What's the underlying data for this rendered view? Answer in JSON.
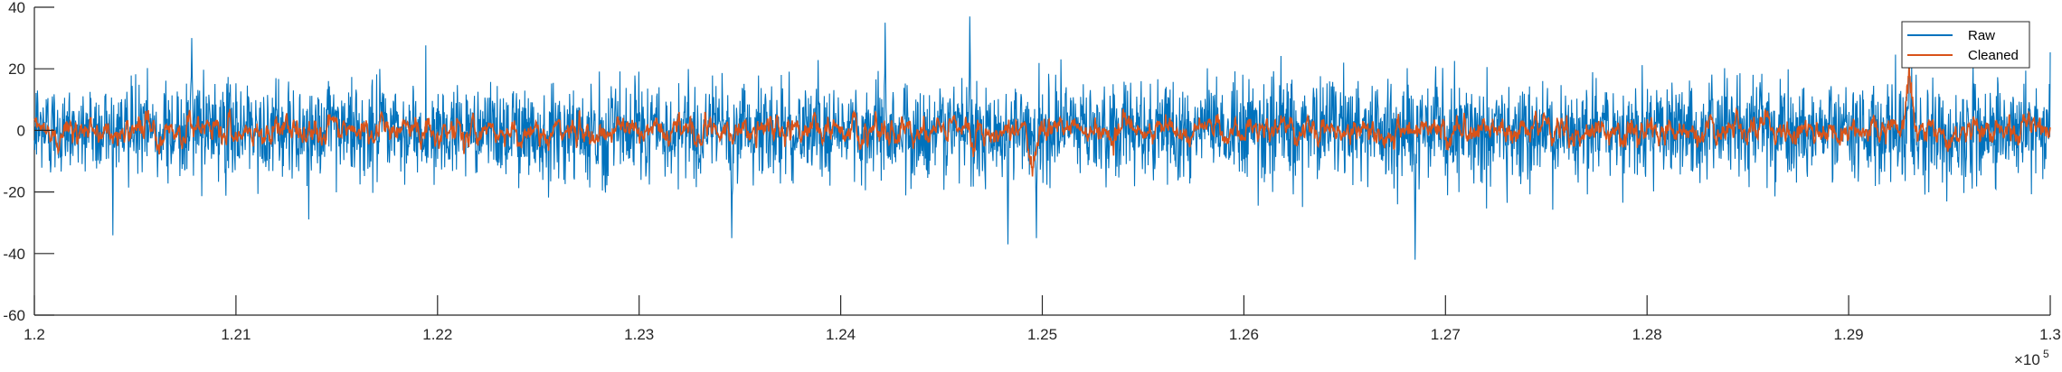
{
  "chart_data": {
    "type": "line",
    "title": "",
    "xlabel": "",
    "ylabel": "",
    "xlim": [
      1.2,
      1.3
    ],
    "ylim": [
      -60,
      40
    ],
    "x_exponent": "×10",
    "x_exponent_power": "5",
    "x_ticks": [
      1.2,
      1.21,
      1.22,
      1.23,
      1.24,
      1.25,
      1.26,
      1.27,
      1.28,
      1.29,
      1.3
    ],
    "x_tick_labels": [
      "1.2",
      "1.21",
      "1.22",
      "1.23",
      "1.24",
      "1.25",
      "1.26",
      "1.27",
      "1.28",
      "1.29",
      "1.3"
    ],
    "y_ticks": [
      -60,
      -40,
      -20,
      0,
      20,
      40
    ],
    "y_tick_labels": [
      "-60",
      "-40",
      "-20",
      "0",
      "20",
      "40"
    ],
    "grid": false,
    "legend": {
      "placement": "top-right",
      "entries": [
        "Raw",
        "Cleaned"
      ]
    },
    "series": [
      {
        "name": "Raw",
        "color": "#0072BD",
        "amplitude_approx": 10,
        "peaks": [
          {
            "x": 1.2078,
            "y": 30
          },
          {
            "x": 1.2464,
            "y": 37
          },
          {
            "x": 1.2422,
            "y": 35
          },
          {
            "x": 1.2346,
            "y": -35
          },
          {
            "x": 1.2483,
            "y": -37
          },
          {
            "x": 1.2497,
            "y": -35
          },
          {
            "x": 1.2685,
            "y": -42
          },
          {
            "x": 1.293,
            "y": 30
          }
        ]
      },
      {
        "name": "Cleaned",
        "color": "#D95319",
        "amplitude_approx": 5,
        "peaks": [
          {
            "x": 1.2495,
            "y": -15
          },
          {
            "x": 1.293,
            "y": 22
          }
        ]
      }
    ]
  }
}
